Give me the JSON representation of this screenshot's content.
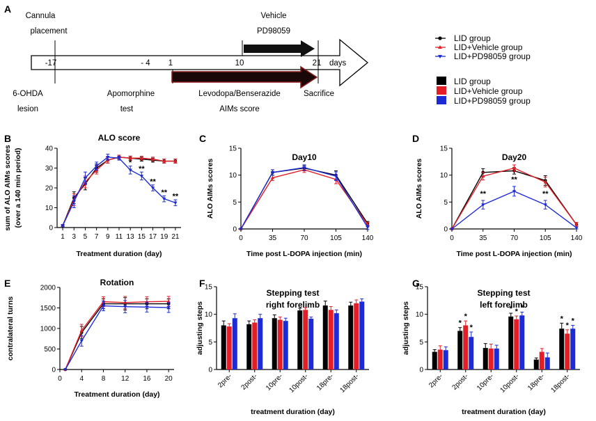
{
  "panels": {
    "A": {
      "label": "A",
      "days": [
        "-17",
        "- 4",
        "1",
        "10",
        "21"
      ],
      "days_unit": "days",
      "cannula": [
        "Cannula",
        "placement"
      ],
      "vehicle": "Vehicle",
      "pd98059": "PD98059",
      "ohda": [
        "6-OHDA",
        "lesion"
      ],
      "apomorphine": [
        "Apomorphine",
        "test"
      ],
      "levodopa": "Levodopa/Benserazide",
      "aims": "AIMs score",
      "sacrifice": "Sacrifice"
    }
  },
  "legend": {
    "lines": [
      "LID group",
      "LID+Vehicle group",
      "LID+PD98059 group"
    ],
    "bars": [
      "LID group",
      "LID+Vehicle group",
      "LID+PD98059 group"
    ]
  },
  "colors": {
    "lid": "#000000",
    "vehicle": "#e41e26",
    "pd": "#1c2bd6"
  },
  "chart_data": [
    {
      "id": "B",
      "label": "B",
      "type": "line",
      "title": "ALO score",
      "xlabel": "Treatment duration (day)",
      "ylabel": [
        "sum of ALO AIMs scores",
        "(over a 140 min period)"
      ],
      "x": [
        1,
        3,
        5,
        7,
        9,
        11,
        13,
        15,
        17,
        19,
        21
      ],
      "xticks": [
        "1",
        "3",
        "5",
        "7",
        "9",
        "11",
        "13",
        "15",
        "17",
        "19",
        "21"
      ],
      "xlim": [
        0,
        22
      ],
      "ylim": [
        0,
        40
      ],
      "yticks": [
        "0",
        "10",
        "20",
        "30",
        "40"
      ],
      "series": [
        {
          "name": "LID group",
          "values": [
            1,
            15,
            22,
            30,
            34,
            35.5,
            35,
            34.5,
            34,
            33.5,
            33.5
          ],
          "errors": [
            0.5,
            3,
            3,
            2,
            1.5,
            1,
            1,
            1,
            1,
            1,
            1
          ]
        },
        {
          "name": "LID+Vehicle group",
          "values": [
            1,
            14,
            23,
            29,
            34,
            35.5,
            35,
            35,
            34.5,
            33.5,
            33.5
          ],
          "errors": [
            0.5,
            3,
            3,
            2,
            1.5,
            1,
            1,
            1,
            1,
            1,
            1
          ]
        },
        {
          "name": "LID+PD98059 group",
          "values": [
            1,
            13,
            25,
            31,
            35.5,
            35,
            29,
            26,
            20,
            14.5,
            12.5
          ],
          "errors": [
            0.5,
            3,
            3,
            2,
            1.5,
            1,
            2,
            2,
            1.5,
            1.5,
            1.5
          ]
        }
      ],
      "annotations": [
        {
          "x": 13,
          "y": 31.5,
          "text": "*"
        },
        {
          "x": 15,
          "y": 28.5,
          "text": "**"
        },
        {
          "x": 17,
          "y": 22,
          "text": "**"
        },
        {
          "x": 19,
          "y": 16.5,
          "text": "**"
        },
        {
          "x": 21,
          "y": 14.5,
          "text": "**"
        }
      ]
    },
    {
      "id": "C",
      "label": "C",
      "type": "line",
      "title": "Day10",
      "xlabel": "Time post L-DOPA injection (min)",
      "ylabel": [
        "ALO AIMs scores"
      ],
      "x": [
        0,
        35,
        70,
        105,
        140
      ],
      "xticks": [
        "0",
        "35",
        "70",
        "105",
        "140"
      ],
      "xlim": [
        0,
        140
      ],
      "ylim": [
        0,
        15
      ],
      "yticks": [
        "0",
        "5",
        "10",
        "15"
      ],
      "series": [
        {
          "name": "LID group",
          "values": [
            0,
            10.5,
            11.3,
            10,
            1
          ],
          "errors": [
            0,
            0.5,
            0.5,
            0.8,
            0.4
          ]
        },
        {
          "name": "LID+Vehicle group",
          "values": [
            0,
            9.5,
            11,
            9.2,
            0.8
          ],
          "errors": [
            0,
            0.5,
            0.5,
            0.8,
            0.4
          ]
        },
        {
          "name": "LID+PD98059 group",
          "values": [
            0,
            10.5,
            11.4,
            9.8,
            0.3
          ],
          "errors": [
            0,
            0.5,
            0.5,
            0.8,
            0.4
          ]
        }
      ],
      "annotations": []
    },
    {
      "id": "D",
      "label": "D",
      "type": "line",
      "title": "Day20",
      "xlabel": "Time post L-DOPA injection (min)",
      "ylabel": [
        "ALO AIMs scores"
      ],
      "x": [
        0,
        35,
        70,
        105,
        140
      ],
      "xticks": [
        "0",
        "35",
        "70",
        "105",
        "140"
      ],
      "xlim": [
        0,
        140
      ],
      "ylim": [
        0,
        15
      ],
      "yticks": [
        "0",
        "5",
        "10",
        "15"
      ],
      "series": [
        {
          "name": "LID group",
          "values": [
            0,
            10.5,
            10.8,
            9,
            0.8
          ],
          "errors": [
            0,
            0.7,
            0.6,
            0.9,
            0.4
          ]
        },
        {
          "name": "LID+Vehicle group",
          "values": [
            0,
            9.8,
            11.3,
            8.7,
            0.8
          ],
          "errors": [
            0,
            0.7,
            0.6,
            0.9,
            0.4
          ]
        },
        {
          "name": "LID+PD98059 group",
          "values": [
            0,
            4.5,
            7,
            4.5,
            0.2
          ],
          "errors": [
            0,
            0.8,
            0.9,
            0.8,
            0.2
          ]
        }
      ],
      "annotations": [
        {
          "x": 35,
          "y": 6.1,
          "text": "**"
        },
        {
          "x": 70,
          "y": 8.7,
          "text": "**"
        },
        {
          "x": 105,
          "y": 6.1,
          "text": "**"
        }
      ]
    },
    {
      "id": "E",
      "label": "E",
      "type": "line",
      "title": "Rotation",
      "xlabel": "Treatment duration (day)",
      "ylabel": [
        "contralateral turns"
      ],
      "x": [
        1,
        4,
        8,
        12,
        16,
        20
      ],
      "xticks": [
        "0",
        "4",
        "8",
        "12",
        "16",
        "20"
      ],
      "xtick_values": [
        0,
        4,
        8,
        12,
        16,
        20
      ],
      "xlim": [
        0,
        21
      ],
      "ylim": [
        0,
        2000
      ],
      "yticks": [
        "0",
        "500",
        "1000",
        "1500",
        "2000"
      ],
      "series": [
        {
          "name": "LID group",
          "values": [
            0,
            900,
            1600,
            1600,
            1600,
            1600
          ],
          "errors": [
            0,
            150,
            120,
            150,
            120,
            120
          ]
        },
        {
          "name": "LID+Vehicle group",
          "values": [
            0,
            950,
            1650,
            1630,
            1650,
            1660
          ],
          "errors": [
            0,
            150,
            120,
            150,
            120,
            120
          ]
        },
        {
          "name": "LID+PD98059 group",
          "values": [
            0,
            700,
            1550,
            1530,
            1520,
            1510
          ],
          "errors": [
            0,
            130,
            120,
            150,
            120,
            120
          ]
        }
      ],
      "annotations": []
    },
    {
      "id": "F",
      "label": "F",
      "type": "bar",
      "title": [
        "Stepping test",
        "right forelimb"
      ],
      "xlabel": "treatment duration (day)",
      "ylabel": [
        "adjusting steps"
      ],
      "categories": [
        "2pre-",
        "2post-",
        "10pre-",
        "10post-",
        "18pre-",
        "18post-"
      ],
      "ylim": [
        0,
        15
      ],
      "yticks": [
        "0",
        "5",
        "10",
        "15"
      ],
      "series": [
        {
          "name": "LID group",
          "values": [
            8,
            8.2,
            9.3,
            10.7,
            11.6,
            11.6
          ],
          "errors": [
            0.8,
            0.6,
            0.6,
            0.4,
            0.8,
            0.6
          ]
        },
        {
          "name": "LID+Vehicle group",
          "values": [
            7.8,
            8.5,
            9,
            10.8,
            10.8,
            12
          ],
          "errors": [
            0.5,
            0.5,
            0.5,
            0.4,
            0.6,
            0.6
          ]
        },
        {
          "name": "LID+PD98059 group",
          "values": [
            9.3,
            9.3,
            8.8,
            9.2,
            10.2,
            12.3
          ],
          "errors": [
            0.8,
            0.7,
            0.5,
            0.3,
            0.6,
            0.5
          ]
        }
      ],
      "annotations": []
    },
    {
      "id": "G",
      "label": "G",
      "type": "bar",
      "title": [
        "Stepping test",
        "left forelimb"
      ],
      "xlabel": "treatment duration (day)",
      "ylabel": [
        "adjusting steps"
      ],
      "categories": [
        "2pre-",
        "2post-",
        "10pre-",
        "10post-",
        "18pre-",
        "18post-"
      ],
      "ylim": [
        0,
        15
      ],
      "yticks": [
        "0",
        "5",
        "10",
        "15"
      ],
      "series": [
        {
          "name": "LID group",
          "values": [
            3.2,
            7,
            3.9,
            9.6,
            1.8,
            7.4
          ],
          "errors": [
            0.4,
            0.6,
            0.8,
            0.6,
            0.3,
            1
          ]
        },
        {
          "name": "LID+Vehicle group",
          "values": [
            3.6,
            8,
            3.8,
            9.1,
            3.2,
            6.5
          ],
          "errors": [
            0.7,
            0.8,
            0.8,
            0.6,
            0.6,
            0.7
          ]
        },
        {
          "name": "LID+PD98059 group",
          "values": [
            3.5,
            5.9,
            3.8,
            9.8,
            2.2,
            7.4
          ],
          "errors": [
            0.6,
            0.9,
            0.6,
            0.6,
            0.8,
            0.6
          ]
        }
      ],
      "annotations": [
        {
          "cat": 1,
          "s": 0,
          "text": "*"
        },
        {
          "cat": 1,
          "s": 1,
          "text": "*"
        },
        {
          "cat": 1,
          "s": 2,
          "text": "*"
        },
        {
          "cat": 3,
          "s": 0,
          "text": "*"
        },
        {
          "cat": 3,
          "s": 1,
          "text": "*"
        },
        {
          "cat": 3,
          "s": 2,
          "text": "*"
        },
        {
          "cat": 5,
          "s": 0,
          "text": "*"
        },
        {
          "cat": 5,
          "s": 1,
          "text": "*"
        },
        {
          "cat": 5,
          "s": 2,
          "text": "*"
        }
      ]
    }
  ]
}
